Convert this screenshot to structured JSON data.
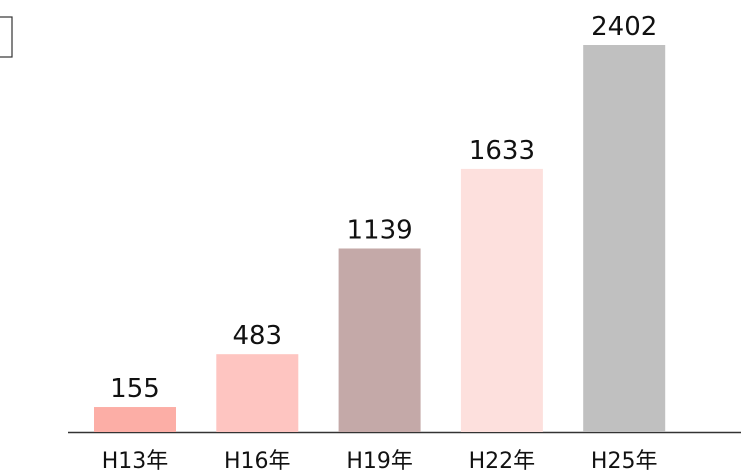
{
  "chart_data": {
    "type": "bar",
    "categories": [
      "H13年",
      "H16年",
      "H19年",
      "H22年",
      "H25年"
    ],
    "values": [
      155,
      483,
      1139,
      1633,
      2402
    ],
    "colors": [
      "#fcaea6",
      "#fec5c1",
      "#c4a9a8",
      "#fde0dd",
      "#c0c0c0"
    ]
  }
}
